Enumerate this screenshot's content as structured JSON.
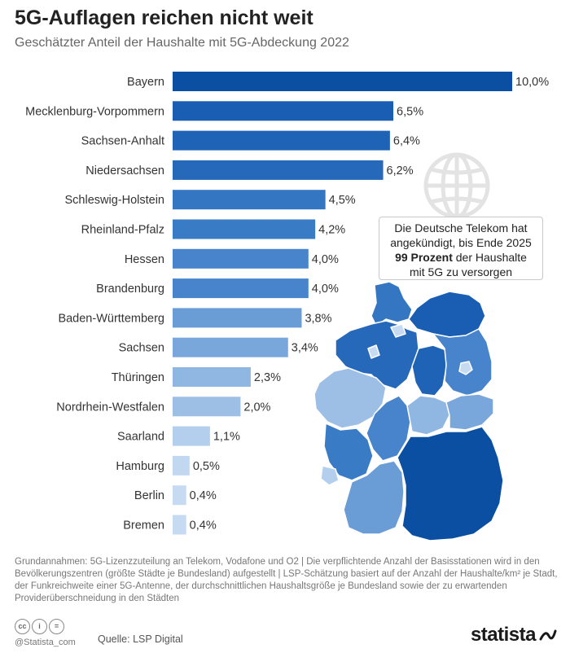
{
  "header": {
    "title": "5G-Auflagen reichen nicht weit",
    "subtitle": "Geschätzter Anteil der Haushalte mit 5G-Abdeckung 2022"
  },
  "chart_data": {
    "type": "bar",
    "orientation": "horizontal",
    "categories": [
      "Bayern",
      "Mecklenburg-Vorpommern",
      "Sachsen-Anhalt",
      "Niedersachsen",
      "Schleswig-Holstein",
      "Rheinland-Pfalz",
      "Hessen",
      "Brandenburg",
      "Baden-Württemberg",
      "Sachsen",
      "Thüringen",
      "Nordrhein-Westfalen",
      "Saarland",
      "Hamburg",
      "Berlin",
      "Bremen"
    ],
    "values": [
      10.0,
      6.5,
      6.4,
      6.2,
      4.5,
      4.2,
      4.0,
      4.0,
      3.8,
      3.4,
      2.3,
      2.0,
      1.1,
      0.5,
      0.4,
      0.4
    ],
    "labels": [
      "10,0%",
      "6,5%",
      "6,4%",
      "6,2%",
      "4,5%",
      "4,2%",
      "4,0%",
      "4,0%",
      "3,8%",
      "3,4%",
      "2,3%",
      "2,0%",
      "1,1%",
      "0,5%",
      "0,4%",
      "0,4%"
    ],
    "colors": [
      "#0b4fa3",
      "#1a5eb3",
      "#1f63b6",
      "#2669ba",
      "#3576c2",
      "#3a7bc6",
      "#4784cb",
      "#4784cb",
      "#6a9cd6",
      "#7aa7db",
      "#90b6e2",
      "#9dbfe6",
      "#b4cfee",
      "#c2d8f1",
      "#c6dbf2",
      "#c6dbf2"
    ],
    "xlim": [
      0,
      10
    ],
    "grid": false
  },
  "callout": {
    "line1": "Die Deutsche Telekom hat",
    "line2": "angekündigt, bis Ende 2025",
    "highlight": "99 Prozent",
    "line3_rest": " der Haushalte",
    "line4": "mit 5G zu versorgen"
  },
  "map": {
    "regions": [
      {
        "name": "Schleswig-Holstein",
        "color": "#3576c2"
      },
      {
        "name": "Mecklenburg-Vorpommern",
        "color": "#1a5eb3"
      },
      {
        "name": "Niedersachsen",
        "color": "#2669ba"
      },
      {
        "name": "Sachsen-Anhalt",
        "color": "#1f63b6"
      },
      {
        "name": "Brandenburg",
        "color": "#4784cb"
      },
      {
        "name": "Nordrhein-Westfalen",
        "color": "#9dbfe6"
      },
      {
        "name": "Hessen",
        "color": "#4784cb"
      },
      {
        "name": "Thüringen",
        "color": "#90b6e2"
      },
      {
        "name": "Sachsen",
        "color": "#7aa7db"
      },
      {
        "name": "Rheinland-Pfalz",
        "color": "#3a7bc6"
      },
      {
        "name": "Saarland",
        "color": "#b4cfee"
      },
      {
        "name": "Baden-Württemberg",
        "color": "#6a9cd6"
      },
      {
        "name": "Bayern",
        "color": "#0b4fa3"
      }
    ]
  },
  "notes": "Grundannahmen: 5G-Lizenzzuteilung an Telekom, Vodafone und O2 | Die verpflichtende Anzahl der Basisstationen wird in den Bevölkerungszentren (größte Städte je Bundesland) aufgestellt | LSP-Schätzung basiert auf der Anzahl der Haushalte/km² je Stadt, der Funkreichweite einer 5G-Antenne, der durchschnittlichen Haushaltsgröße je Bundesland sowie der zu erwartenden Providerüberschneidung in den Städten",
  "footer": {
    "handle": "@Statista_com",
    "source": "Quelle: LSP Digital",
    "brand": "statista"
  }
}
